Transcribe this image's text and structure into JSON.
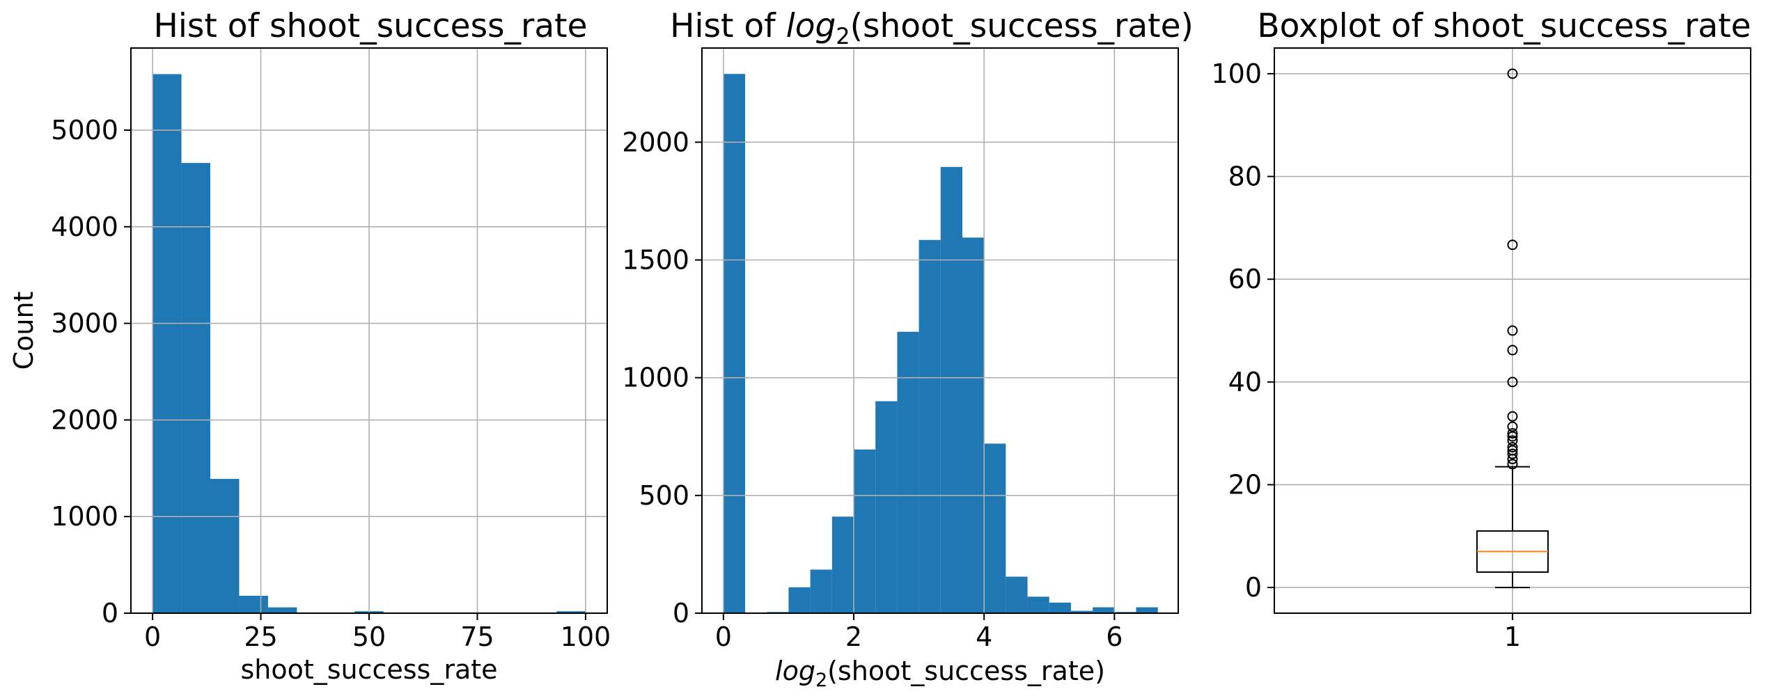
{
  "figure": {
    "background": "#ffffff"
  },
  "chart_data": [
    {
      "type": "bar",
      "subtype": "histogram",
      "title": "Hist of shoot_success_rate",
      "xlabel": "shoot_success_rate",
      "ylabel": "Count",
      "xlim": [
        -5,
        105
      ],
      "ylim": [
        0,
        5850
      ],
      "xticks": [
        0,
        25,
        50,
        75,
        100
      ],
      "yticks": [
        0,
        1000,
        2000,
        3000,
        4000,
        5000
      ],
      "grid": true,
      "color": "#1f77b4",
      "bin_edges": [
        0,
        6.67,
        13.33,
        20,
        26.67,
        33.33,
        40,
        46.67,
        53.33,
        60,
        66.67,
        73.33,
        80,
        86.67,
        93.33,
        100
      ],
      "values": [
        5580,
        4660,
        1390,
        180,
        60,
        0,
        0,
        20,
        0,
        0,
        0,
        0,
        0,
        0,
        20
      ]
    },
    {
      "type": "bar",
      "subtype": "histogram",
      "title_prefix": "Hist of ",
      "title_math": "log",
      "title_sub": "2",
      "title_suffix": "(shoot_success_rate)",
      "xlabel_math": "log",
      "xlabel_sub": "2",
      "xlabel_suffix": "(shoot_success_rate)",
      "xlim": [
        -0.33,
        6.98
      ],
      "ylim": [
        0,
        2400
      ],
      "xticks": [
        0,
        2,
        4,
        6
      ],
      "yticks": [
        0,
        500,
        1000,
        1500,
        2000
      ],
      "grid": true,
      "color": "#1f77b4",
      "bin_edges": [
        0,
        0.333,
        0.667,
        1.0,
        1.333,
        1.667,
        2.0,
        2.333,
        2.667,
        3.0,
        3.333,
        3.667,
        4.0,
        4.333,
        4.667,
        5.0,
        5.333,
        5.667,
        6.0,
        6.333,
        6.667
      ],
      "values": [
        2290,
        0,
        5,
        110,
        185,
        410,
        695,
        900,
        1195,
        1585,
        1895,
        1595,
        720,
        155,
        70,
        45,
        10,
        25,
        5,
        25
      ]
    },
    {
      "type": "box",
      "title": "Boxplot of shoot_success_rate",
      "xticks": [
        "1"
      ],
      "ylim": [
        -5,
        105
      ],
      "yticks": [
        0,
        20,
        40,
        60,
        80,
        100
      ],
      "grid": true,
      "box": {
        "whislo": 0,
        "q1": 3,
        "median": 7,
        "q3": 11,
        "whishi": 23.5
      },
      "median_color": "#ff7f0e",
      "fliers": [
        24,
        25,
        26,
        26.7,
        27.3,
        28.6,
        29.4,
        30,
        31.3,
        33.3,
        40,
        46.2,
        50,
        66.7,
        100
      ]
    }
  ]
}
